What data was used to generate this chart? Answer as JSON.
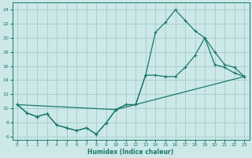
{
  "xlabel": "Humidex (Indice chaleur)",
  "bg_color": "#cce8e8",
  "grid_color": "#aacfcf",
  "line_color": "#1a7a6a",
  "xlim": [
    -0.5,
    23.5
  ],
  "ylim": [
    5.5,
    25.0
  ],
  "xticks": [
    0,
    1,
    2,
    3,
    4,
    5,
    6,
    7,
    8,
    9,
    10,
    11,
    12,
    13,
    14,
    15,
    16,
    17,
    18,
    19,
    20,
    21,
    22,
    23
  ],
  "yticks": [
    6,
    8,
    10,
    12,
    14,
    16,
    18,
    20,
    22,
    24
  ],
  "line1_x": [
    0,
    1,
    2,
    3,
    4,
    5,
    6,
    7,
    8,
    9,
    10,
    23
  ],
  "line1_y": [
    10.5,
    9.3,
    8.8,
    9.2,
    7.6,
    7.2,
    6.8,
    7.2,
    6.3,
    7.9,
    9.8,
    14.5
  ],
  "line2_x": [
    0,
    1,
    2,
    3,
    4,
    5,
    6,
    7,
    8,
    9,
    10,
    11,
    12,
    13,
    14,
    15,
    16,
    17,
    18,
    19,
    20,
    21,
    22,
    23
  ],
  "line2_y": [
    10.5,
    9.3,
    8.8,
    9.2,
    7.6,
    7.2,
    6.8,
    7.2,
    6.3,
    7.9,
    9.8,
    10.5,
    10.5,
    14.7,
    20.8,
    22.2,
    24.0,
    22.5,
    21.0,
    20.0,
    16.2,
    15.8,
    15.0,
    14.5
  ],
  "line3_x": [
    0,
    10,
    11,
    12,
    13,
    14,
    15,
    16,
    17,
    18,
    19,
    20,
    21,
    22,
    23
  ],
  "line3_y": [
    10.5,
    9.8,
    10.5,
    10.5,
    14.7,
    14.7,
    14.5,
    14.5,
    15.8,
    17.5,
    20.0,
    18.0,
    16.2,
    15.8,
    14.5
  ]
}
